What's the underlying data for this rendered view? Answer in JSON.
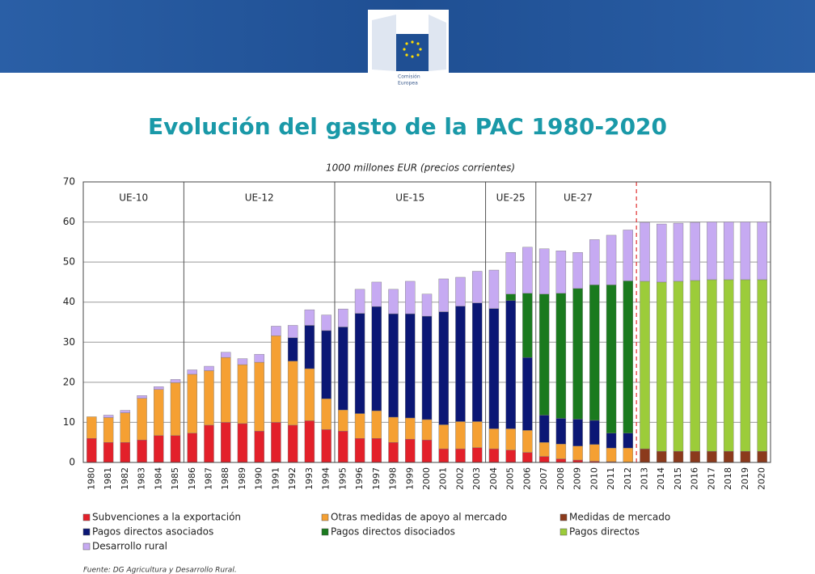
{
  "header": {
    "logo_text": [
      "Comisión",
      "Europea"
    ]
  },
  "chart_data": {
    "type": "bar",
    "stacked": true,
    "title": "Evolución del gasto de la PAC 1980-2020",
    "subtitle": "1000 millones EUR (precios corrientes)",
    "source": "Fuente: DG Agricultura y Desarrollo Rural.",
    "categories": [
      "1980",
      "1981",
      "1982",
      "1983",
      "1984",
      "1985",
      "1986",
      "1987",
      "1988",
      "1989",
      "1990",
      "1991",
      "1992",
      "1993",
      "1994",
      "1995",
      "1996",
      "1997",
      "1998",
      "1999",
      "2000",
      "2001",
      "2002",
      "2003",
      "2004",
      "2005",
      "2006",
      "2007",
      "2008",
      "2009",
      "2010",
      "2011",
      "2012",
      "2013",
      "2014",
      "2015",
      "2016",
      "2017",
      "2018",
      "2019",
      "2020"
    ],
    "periods": [
      {
        "label": "UE-10",
        "first": "1980",
        "last": "1985"
      },
      {
        "label": "UE-12",
        "first": "1986",
        "last": "1994"
      },
      {
        "label": "UE-15",
        "first": "1995",
        "last": "2003"
      },
      {
        "label": "UE-25",
        "first": "2004",
        "last": "2006"
      },
      {
        "label": "UE-27",
        "first": "2007",
        "last": "2012"
      }
    ],
    "ylim": [
      0,
      70
    ],
    "yticks": [
      0,
      10,
      20,
      30,
      40,
      50,
      60,
      70
    ],
    "grid": true,
    "series": [
      {
        "name": "Subvenciones a la exportación",
        "color": "#e3202a",
        "values": [
          6,
          5,
          5,
          5.6,
          6.7,
          6.7,
          7.3,
          9.3,
          10,
          9.7,
          7.8,
          10,
          9.3,
          10.4,
          8.2,
          7.8,
          6,
          6,
          5,
          5.8,
          5.6,
          3.4,
          3.4,
          3.7,
          3.4,
          3.1,
          2.5,
          1.5,
          0.9,
          0.6,
          0.3,
          0.2,
          0.1,
          0,
          0,
          0,
          0,
          0,
          0,
          0,
          0
        ]
      },
      {
        "name": "Otras medidas de apoyo al mercado",
        "color": "#f5a033",
        "values": [
          5.4,
          6.2,
          7.4,
          10.4,
          11.5,
          13.2,
          14.7,
          13.6,
          16.2,
          14.7,
          17.2,
          21.6,
          16,
          13,
          7.7,
          5.3,
          6.2,
          6.9,
          6.3,
          5.3,
          5.1,
          6,
          6.8,
          6.5,
          5,
          5.3,
          5.5,
          3.5,
          3.7,
          3.5,
          4.2,
          3.4,
          3.5,
          0,
          0,
          0,
          0,
          0,
          0,
          0,
          0
        ]
      },
      {
        "name": "Medidas de mercado",
        "color": "#8b3a1c",
        "values": [
          0,
          0,
          0,
          0,
          0,
          0,
          0,
          0,
          0,
          0,
          0,
          0,
          0,
          0,
          0,
          0,
          0,
          0,
          0,
          0,
          0,
          0,
          0,
          0,
          0,
          0,
          0,
          0,
          0,
          0,
          0,
          0,
          0,
          3.4,
          2.8,
          2.8,
          2.8,
          2.8,
          2.8,
          2.8,
          2.8
        ]
      },
      {
        "name": "Pagos directos asociados",
        "color": "#0b1775",
        "values": [
          0,
          0,
          0,
          0,
          0,
          0,
          0,
          0,
          0,
          0,
          0,
          0,
          5.8,
          10.8,
          17,
          20.7,
          25,
          26,
          25.8,
          26,
          25.8,
          28.2,
          28.8,
          29.6,
          30,
          32,
          18.2,
          6.8,
          6.4,
          6.7,
          6,
          3.7,
          3.7,
          0,
          0,
          0,
          0,
          0,
          0,
          0,
          0
        ]
      },
      {
        "name": "Pagos directos disociados",
        "color": "#1a7a1e",
        "values": [
          0,
          0,
          0,
          0,
          0,
          0,
          0,
          0,
          0,
          0,
          0,
          0,
          0,
          0,
          0,
          0,
          0,
          0,
          0,
          0,
          0,
          0,
          0,
          0,
          0,
          1.6,
          16,
          30.2,
          31.2,
          32.6,
          33.8,
          37,
          38,
          0,
          0,
          0,
          0,
          0,
          0,
          0,
          0
        ]
      },
      {
        "name": "Pagos directos",
        "color": "#9ccc3a",
        "values": [
          0,
          0,
          0,
          0,
          0,
          0,
          0,
          0,
          0,
          0,
          0,
          0,
          0,
          0,
          0,
          0,
          0,
          0,
          0,
          0,
          0,
          0,
          0,
          0,
          0,
          0,
          0,
          0,
          0,
          0,
          0,
          0,
          0,
          41.8,
          42.2,
          42.4,
          42.6,
          42.8,
          42.8,
          42.8,
          42.8
        ]
      },
      {
        "name": "Desarrollo rural",
        "color": "#c6aaf2",
        "values": [
          0,
          0.6,
          0.6,
          0.7,
          0.7,
          0.8,
          1.1,
          1.1,
          1.3,
          1.5,
          2,
          2.4,
          3.1,
          3.9,
          3.9,
          4.5,
          6,
          6.1,
          6.1,
          8.1,
          5.5,
          8.2,
          7.2,
          7.9,
          9.6,
          10.4,
          11.5,
          11.3,
          10.6,
          9,
          11.3,
          12.4,
          12.7,
          14.7,
          14.5,
          14.5,
          14.5,
          14.4,
          14.4,
          14.4,
          14.4
        ]
      }
    ]
  }
}
